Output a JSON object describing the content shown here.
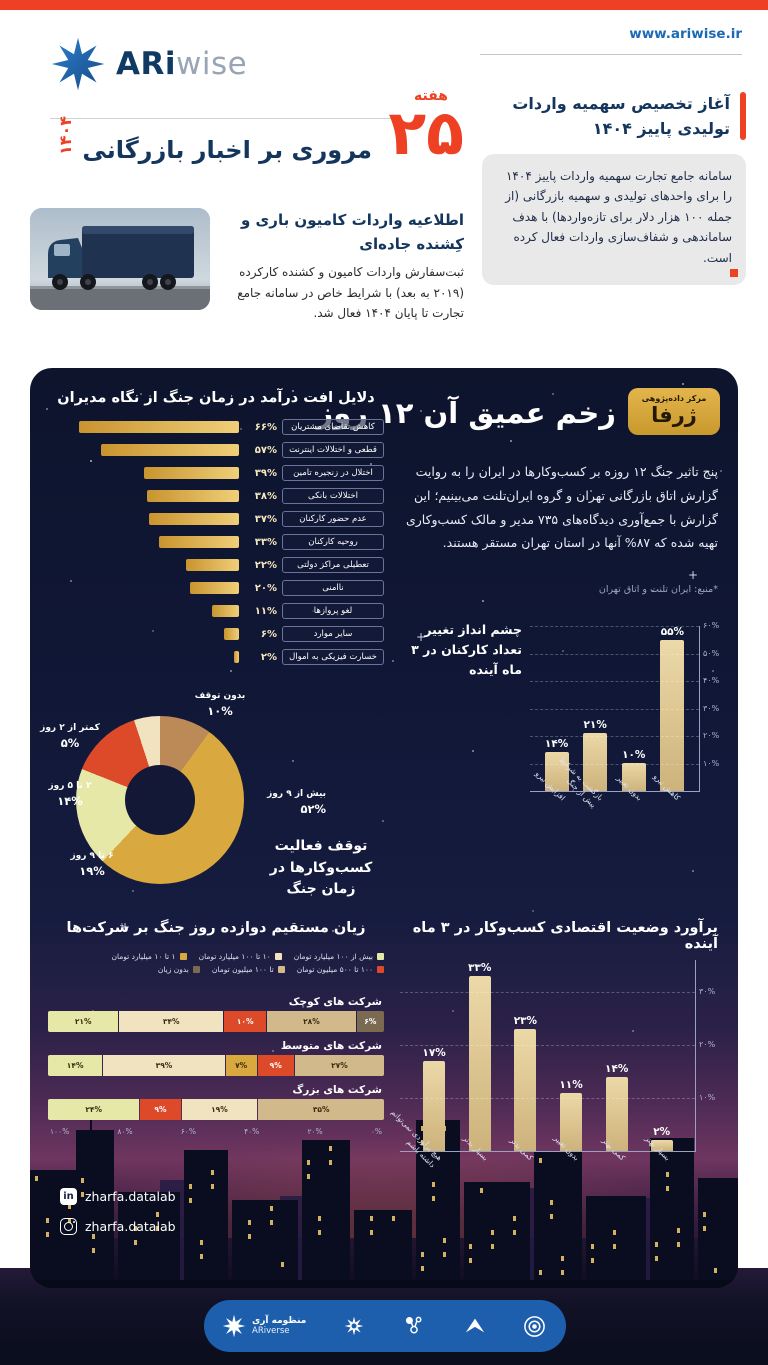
{
  "header": {
    "url": "www.ariwise.ir",
    "brand_bold": "ARi",
    "brand_light": "wise"
  },
  "masthead": {
    "week_label": "هفته",
    "week_number": "۲۵",
    "title": "مروری بر اخبار بازرگانی",
    "year": "۱۴۰۴"
  },
  "news_card": {
    "title": "آغاز تخصیص سهمیه واردات تولیدی پاییز ۱۴۰۴",
    "body": "سامانه جامع تجارت سهمیه واردات پاییز ۱۴۰۴ را برای واحدهای تولیدی و سهمیه بازرگانی (از جمله ۱۰۰ هزار دلار برای تازه‌واردها) با هدف ساماندهی و شفاف‌سازی واردات فعال کرده است."
  },
  "truck_news": {
    "title": "اطلاعیه واردات کامیون باری و کِشنده جاده‌ای",
    "body": "ثبت‌سفارش واردات کامیون و کشنده کارکرده (۲۰۱۹ به بعد) با شرایط خاص در سامانه جامع تجارت تا پایان ۱۴۰۴ فعال شد."
  },
  "panel": {
    "badge_line1": "مرکز داده‌پژوهی",
    "badge_line2": "ژرفا",
    "title": "زخم عمیق آن ۱۲ روز",
    "intro": "پنج تاثیر جنگ ۱۲ روزه بر کسب‌وکارها در ایران را به روایت گزارش اتاق بازرگانی تهران و گروه ایران‌تلنت می‌بینیم؛ این گزارش با جمع‌آوری دیدگاه‌های ۷۳۵ مدیر و مالک کسب‌وکاری تهیه شده که ۸۷% آنها در استان تهران مستقر هستند.",
    "source": "*منبع: ایران تلنت و اتاق تهران",
    "social": {
      "linkedin": "zharfa.datalab",
      "instagram": "zharfa.datalab"
    },
    "footer_brand_fa": "منظومه آری",
    "footer_brand_en": "ARiverse"
  },
  "chart_data": [
    {
      "id": "revenue_drop_reasons",
      "type": "bar",
      "orientation": "horizontal",
      "title": "دلایل افت درآمد در زمان جنگ از نگاه مدیران",
      "unit": "%",
      "categories": [
        "کاهش تقاضای مشتریان",
        "قطعی و اختلالات اینترنت",
        "اختلال در زنجیره تامین",
        "اختلالات بانکی",
        "عدم حضور کارکنان",
        "روحیه کارکنان",
        "تعطیلی مراکز دولتی",
        "ناامنی",
        "لغو پروازها",
        "سایر موارد",
        "خسارت فیزیکی به اموال"
      ],
      "values": [
        66,
        57,
        39,
        38,
        37,
        33,
        22,
        20,
        11,
        6,
        2
      ],
      "xlim": [
        0,
        70
      ],
      "bar_color": "#e3b95c"
    },
    {
      "id": "business_halt_duration",
      "type": "pie",
      "title": "توقف فعالیت کسب‌وکارها در زمان جنگ",
      "unit": "%",
      "categories": [
        "بدون توقف",
        "بیش از ۹ روز",
        "۶ تا ۹ روز",
        "۲ تا ۵ روز",
        "کمتر از ۲ روز"
      ],
      "values": [
        10,
        52,
        19,
        14,
        5
      ],
      "colors": [
        "#bc8a56",
        "#d9a93f",
        "#e6e8a8",
        "#dd4a2a",
        "#f2e3c0"
      ]
    },
    {
      "id": "workforce_outlook",
      "type": "bar",
      "title": "چشم انداز تغییر تعداد کارکنان در ۳ ماه آینده",
      "unit": "%",
      "categories": [
        "افزایش نیرو",
        "بازگشت به شرایط پیش از جنگ",
        "بدون تغییر",
        "کاهش نیرو"
      ],
      "values": [
        14,
        21,
        10,
        55
      ],
      "ylim": [
        0,
        60
      ],
      "yticks": [
        10,
        20,
        30,
        40,
        50,
        60
      ],
      "bar_color": "#ecd9a8"
    },
    {
      "id": "direct_losses",
      "type": "stacked-bar",
      "title": "زیان مستقیم دوازده روز جنگ بر شرکت‌ها",
      "unit": "%",
      "legend": [
        {
          "label": "بیش از ۱۰۰ میلیارد تومان",
          "color": "#e6e8a8"
        },
        {
          "label": "۱۰ تا ۱۰۰ میلیارد تومان",
          "color": "#f2e3c0"
        },
        {
          "label": "۱ تا ۱۰ میلیارد تومان",
          "color": "#d9a93f"
        },
        {
          "label": "۱۰۰ تا ۵۰۰ میلیون تومان",
          "color": "#dd4a2a"
        },
        {
          "label": "تا ۱۰۰ میلیون تومان",
          "color": "#d2b98c"
        },
        {
          "label": "بدون زیان",
          "color": "#7a6a52"
        }
      ],
      "groups": [
        {
          "label": "شرکت های کوچک",
          "segments": [
            {
              "value": 21,
              "color": "#e6e8a8"
            },
            {
              "value": 34,
              "color": "#f2e3c0"
            },
            {
              "value": 10,
              "color": "#dd4a2a"
            },
            {
              "value": 28,
              "color": "#d2b98c"
            },
            {
              "value": 6,
              "color": "#7a6a52"
            }
          ]
        },
        {
          "label": "شرکت های متوسط",
          "segments": [
            {
              "value": 14,
              "color": "#e6e8a8"
            },
            {
              "value": 39,
              "color": "#f2e3c0"
            },
            {
              "value": 7,
              "color": "#d9a93f"
            },
            {
              "value": 9,
              "color": "#dd4a2a"
            },
            {
              "value": 27,
              "color": "#d2b98c"
            }
          ]
        },
        {
          "label": "شرکت های بزرگ",
          "segments": [
            {
              "value": 24,
              "color": "#e6e8a8"
            },
            {
              "value": 9,
              "color": "#dd4a2a"
            },
            {
              "value": 19,
              "color": "#f2e3c0"
            },
            {
              "value": 35,
              "color": "#d2b98c"
            }
          ]
        }
      ],
      "xticks": [
        0,
        20,
        40,
        60,
        80,
        100
      ]
    },
    {
      "id": "economic_outlook",
      "type": "bar",
      "title": "برآورد وضعیت اقتصادی کسب‌وکار در ۳ ماه آینده",
      "unit": "%",
      "categories": [
        "بسیار بهتر",
        "کمی بهتر",
        "بدون تغییر",
        "کمی بدتر",
        "بسیار بدتر",
        "هیچ برآوردی نمی‌توانم داشته باشم"
      ],
      "values": [
        2,
        14,
        11,
        23,
        33,
        17
      ],
      "ylim": [
        0,
        36
      ],
      "yticks": [
        10,
        20,
        30
      ],
      "bar_color": "#ecd9a8"
    }
  ],
  "colors": {
    "accent": "#ee4023",
    "navy": "#14355c",
    "panel_bg": "#111936",
    "gold": "#d9a93f",
    "link_blue": "#1b6ab5",
    "footer_bar": "#1d5fad"
  }
}
